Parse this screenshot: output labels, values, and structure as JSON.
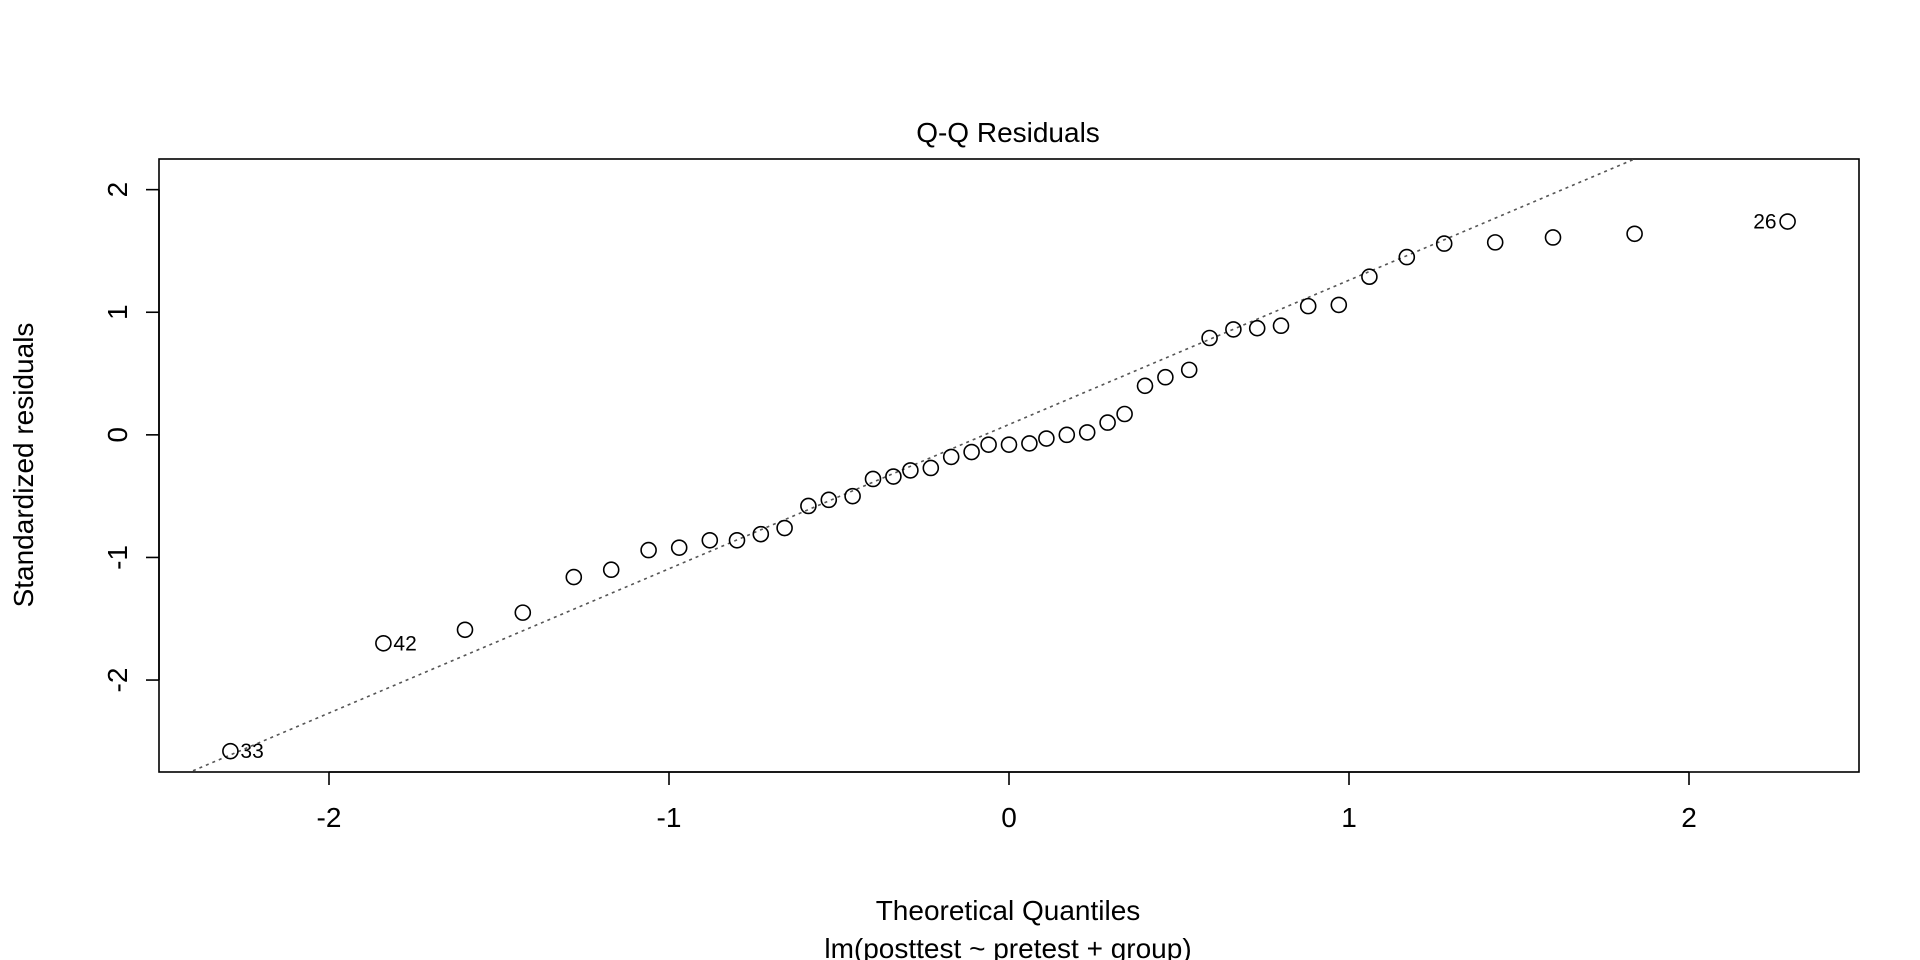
{
  "chart_data": {
    "type": "scatter",
    "title": "Q-Q Residuals",
    "xlabel": "Theoretical Quantiles",
    "subtitle": "lm(posttest ~ pretest + group)",
    "ylabel": "Standardized residuals",
    "xlim": [
      -2.5,
      2.5
    ],
    "ylim": [
      -2.75,
      2.25
    ],
    "xticks": [
      -2,
      -1,
      0,
      1,
      2
    ],
    "yticks": [
      -2,
      -1,
      0,
      1,
      2
    ],
    "xtick_labels": [
      "-2",
      "-1",
      "0",
      "1",
      "2"
    ],
    "ytick_labels": [
      "-2",
      "-1",
      "0",
      "1",
      "2"
    ],
    "grid": false,
    "reference_line": {
      "style": "dotted",
      "color": "#555555",
      "x1": -2.4,
      "y1": -2.74,
      "x2": 1.84,
      "y2": 2.25
    },
    "marker_color": "#000000",
    "points": [
      {
        "x": -2.29,
        "y": -2.58,
        "label": "33",
        "label_side": "right"
      },
      {
        "x": -1.84,
        "y": -1.7,
        "label": "42",
        "label_side": "right"
      },
      {
        "x": -1.6,
        "y": -1.59
      },
      {
        "x": -1.43,
        "y": -1.45
      },
      {
        "x": -1.28,
        "y": -1.16
      },
      {
        "x": -1.17,
        "y": -1.1
      },
      {
        "x": -1.06,
        "y": -0.94
      },
      {
        "x": -0.97,
        "y": -0.92
      },
      {
        "x": -0.88,
        "y": -0.86
      },
      {
        "x": -0.8,
        "y": -0.86
      },
      {
        "x": -0.73,
        "y": -0.81
      },
      {
        "x": -0.66,
        "y": -0.76
      },
      {
        "x": -0.59,
        "y": -0.58
      },
      {
        "x": -0.53,
        "y": -0.53
      },
      {
        "x": -0.46,
        "y": -0.5
      },
      {
        "x": -0.4,
        "y": -0.36
      },
      {
        "x": -0.34,
        "y": -0.34
      },
      {
        "x": -0.29,
        "y": -0.29
      },
      {
        "x": -0.23,
        "y": -0.27
      },
      {
        "x": -0.17,
        "y": -0.18
      },
      {
        "x": -0.11,
        "y": -0.14
      },
      {
        "x": -0.06,
        "y": -0.08
      },
      {
        "x": 0.0,
        "y": -0.08
      },
      {
        "x": 0.06,
        "y": -0.07
      },
      {
        "x": 0.11,
        "y": -0.03
      },
      {
        "x": 0.17,
        "y": 0.0
      },
      {
        "x": 0.23,
        "y": 0.02
      },
      {
        "x": 0.29,
        "y": 0.1
      },
      {
        "x": 0.34,
        "y": 0.17
      },
      {
        "x": 0.4,
        "y": 0.4
      },
      {
        "x": 0.46,
        "y": 0.47
      },
      {
        "x": 0.53,
        "y": 0.53
      },
      {
        "x": 0.59,
        "y": 0.79
      },
      {
        "x": 0.66,
        "y": 0.86
      },
      {
        "x": 0.73,
        "y": 0.87
      },
      {
        "x": 0.8,
        "y": 0.89
      },
      {
        "x": 0.88,
        "y": 1.05
      },
      {
        "x": 0.97,
        "y": 1.06
      },
      {
        "x": 1.06,
        "y": 1.29
      },
      {
        "x": 1.17,
        "y": 1.45
      },
      {
        "x": 1.28,
        "y": 1.56
      },
      {
        "x": 1.43,
        "y": 1.57
      },
      {
        "x": 1.6,
        "y": 1.61
      },
      {
        "x": 1.84,
        "y": 1.64
      },
      {
        "x": 2.29,
        "y": 1.74,
        "label": "26",
        "label_side": "left"
      }
    ]
  }
}
